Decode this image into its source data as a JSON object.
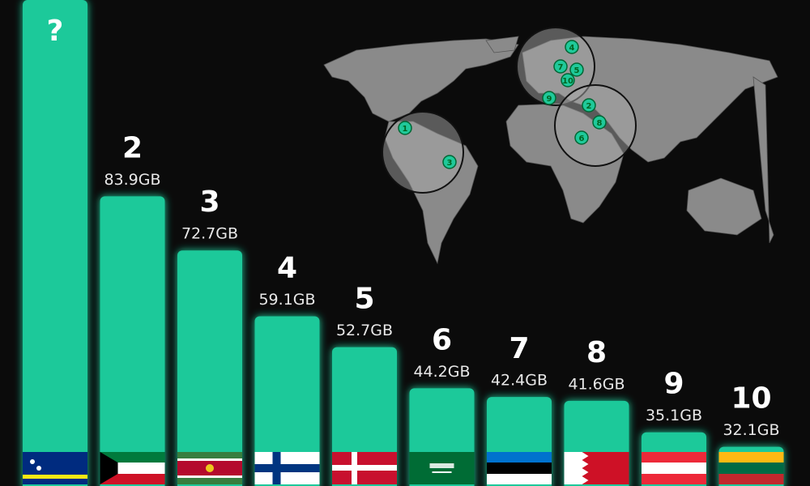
{
  "chart_data": {
    "type": "bar",
    "categories": [
      "?",
      "2",
      "3",
      "4",
      "5",
      "6",
      "7",
      "8",
      "9",
      "10"
    ],
    "values": [
      null,
      83.9,
      72.7,
      59.1,
      52.7,
      44.2,
      42.4,
      41.6,
      35.1,
      32.1
    ],
    "value_labels": [
      null,
      "83.9GB",
      "72.7GB",
      "59.1GB",
      "52.7GB",
      "44.2GB",
      "42.4GB",
      "41.6GB",
      "35.1GB",
      "32.1GB"
    ],
    "color": "#1fc99a",
    "ylim": [
      24.5,
      124.5
    ],
    "map_markers": [
      "1",
      "3",
      "4",
      "7",
      "5",
      "10",
      "9",
      "2",
      "8",
      "6"
    ]
  }
}
